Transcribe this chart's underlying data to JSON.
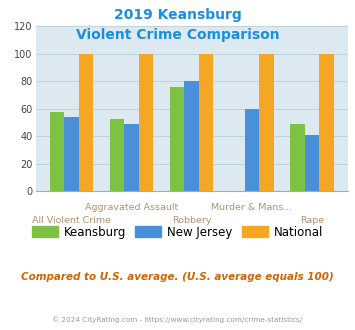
{
  "title_line1": "2019 Keansburg",
  "title_line2": "Violent Crime Comparison",
  "categories": [
    "All Violent Crime",
    "Aggravated Assault",
    "Robbery",
    "Murder & Mans...",
    "Rape"
  ],
  "keansburg": [
    58,
    53,
    76,
    0,
    49
  ],
  "new_jersey": [
    54,
    49,
    80,
    60,
    41
  ],
  "national": [
    100,
    100,
    100,
    100,
    100
  ],
  "color_keansburg": "#7dc242",
  "color_nj": "#4a90d9",
  "color_national": "#f5a623",
  "ylim": [
    0,
    120
  ],
  "yticks": [
    0,
    20,
    40,
    60,
    80,
    100,
    120
  ],
  "background_color": "#dce9f0",
  "grid_color": "#b8d0dc",
  "subtitle": "Compared to U.S. average. (U.S. average equals 100)",
  "footer": "© 2024 CityRating.com - https://www.cityrating.com/crime-statistics/",
  "title_color": "#1a8fdd",
  "subtitle_color": "#cc6600",
  "footer_color": "#999999",
  "xlabel_color_top": "#b09070",
  "xlabel_color_bot": "#b09070",
  "bar_width": 0.24,
  "top_row_cats": [
    "Aggravated Assault",
    "Murder & Mans..."
  ],
  "bottom_row_cats": [
    "All Violent Crime",
    "Robbery",
    "Rape"
  ]
}
